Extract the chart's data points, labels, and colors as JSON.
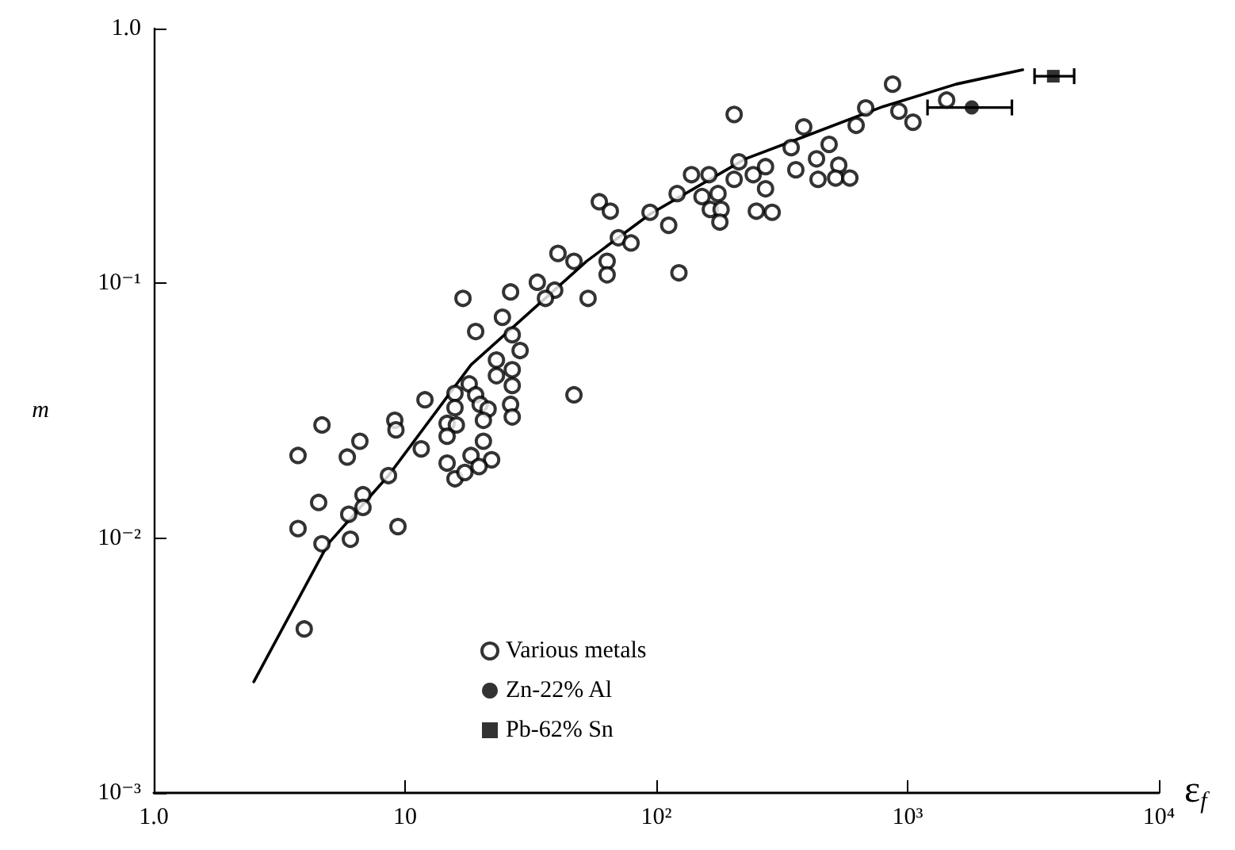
{
  "chart_data": {
    "type": "scatter",
    "xlabel": "ε$_{f}$",
    "ylabel": "m",
    "log": "xy",
    "grid": false,
    "legend": "bottom",
    "xlim": [
      1,
      10000
    ],
    "xticks": [
      {
        "value": 1,
        "label": "1.0"
      },
      10,
      {
        "value": 100,
        "label": "10²"
      },
      {
        "value": 1000,
        "label": "10³"
      },
      {
        "value": 10000,
        "label": "10⁴"
      }
    ],
    "ylim": [
      0.001,
      1
    ],
    "yticks": [
      {
        "value": 0.001,
        "label": "10⁻³"
      },
      {
        "value": 0.01,
        "label": "10⁻²"
      },
      {
        "value": 0.1,
        "label": "10⁻¹"
      },
      {
        "value": 1,
        "label": "1.0"
      }
    ],
    "series": [
      {
        "name": "Various metals",
        "marker": "circle",
        "color": "#000000",
        "x": [
          3.75,
          4.67,
          4.53,
          3.75,
          5.89,
          6.61,
          6.8,
          5.97,
          6.8,
          4.67,
          6.06,
          3.97,
          8.59,
          9.37,
          9.1,
          9.2,
          12.0,
          11.6,
          17.0,
          26.3,
          19.1,
          24.4,
          26.7,
          28.7,
          23.1,
          23.1,
          26.7,
          26.7,
          26.3,
          26.7,
          18.0,
          15.8,
          19.1,
          19.9,
          21.4,
          20.5,
          15.8,
          14.7,
          16.0,
          14.7,
          20.5,
          18.3,
          22.1,
          14.7,
          15.8,
          17.3,
          19.7,
          47.0,
          33.6,
          39.4,
          36.2,
          53.5,
          40.6,
          47.0,
          59.3,
          65.6,
          94.4,
          112,
          70.6,
          79.3,
          63.7,
          63.7,
          123,
          121,
          138,
          162,
          152,
          176,
          164,
          181,
          179,
          204,
          213,
          243,
          272,
          272,
          250,
          289,
          204,
          344,
          359,
          386,
          434,
          487,
          440,
          532,
          517,
          589,
          624,
          681,
          871,
          923,
          1050,
          1430
        ],
        "values": [
          0.0211,
          0.0278,
          0.0138,
          0.0109,
          0.0208,
          0.024,
          0.0148,
          0.0124,
          0.0132,
          0.0095,
          0.0099,
          0.0044,
          0.0176,
          0.0111,
          0.029,
          0.0266,
          0.0349,
          0.0224,
          0.0873,
          0.0925,
          0.0647,
          0.0736,
          0.0628,
          0.0545,
          0.05,
          0.0434,
          0.0458,
          0.0397,
          0.0335,
          0.0299,
          0.0403,
          0.037,
          0.0365,
          0.0335,
          0.0321,
          0.029,
          0.0325,
          0.0282,
          0.0278,
          0.0251,
          0.024,
          0.0211,
          0.0203,
          0.0197,
          0.0171,
          0.0181,
          0.0191,
          0.0365,
          0.101,
          0.094,
          0.0873,
          0.0873,
          0.131,
          0.122,
          0.209,
          0.192,
          0.19,
          0.169,
          0.151,
          0.144,
          0.122,
          0.108,
          0.11,
          0.225,
          0.267,
          0.267,
          0.219,
          0.225,
          0.195,
          0.195,
          0.174,
          0.256,
          0.3,
          0.267,
          0.287,
          0.235,
          0.192,
          0.19,
          0.46,
          0.341,
          0.279,
          0.411,
          0.308,
          0.351,
          0.256,
          0.291,
          0.259,
          0.259,
          0.417,
          0.488,
          0.605,
          0.474,
          0.429,
          0.524
        ]
      },
      {
        "name": "Zn-22% Al",
        "marker": "circle",
        "color": "#000000",
        "x": [
          1800
        ],
        "values": [
          0.49
        ],
        "xerrors": [
          [
            1200,
            2600
          ]
        ]
      },
      {
        "name": "Pb-62% Sn",
        "marker": "square",
        "color": "#000000",
        "x": [
          3800
        ],
        "values": [
          0.65
        ],
        "xerrors": [
          [
            3200,
            4600
          ]
        ]
      },
      {
        "type": "line",
        "marker": "none",
        "line_style": "solid",
        "color": "#000000",
        "x": [
          2.5,
          4.94,
          8.59,
          18.3,
          52.7,
          94.4,
          226,
          403,
          798,
          1560,
          2870
        ],
        "values": [
          0.00273,
          0.0095,
          0.0176,
          0.0479,
          0.122,
          0.187,
          0.308,
          0.382,
          0.494,
          0.605,
          0.689
        ]
      }
    ]
  }
}
